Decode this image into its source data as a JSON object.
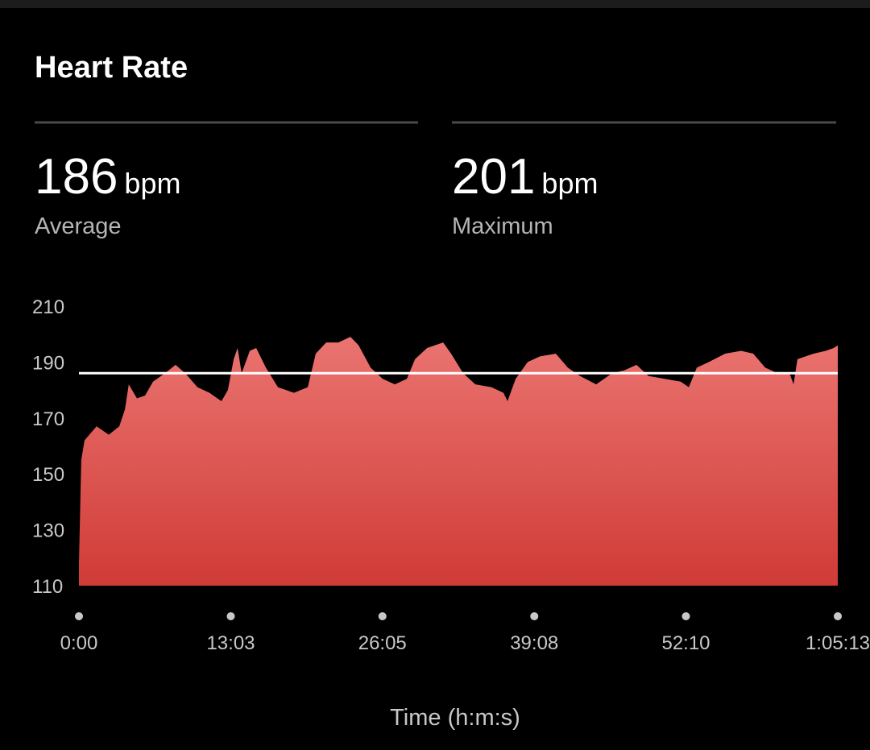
{
  "header": {
    "title": "Heart Rate"
  },
  "stats": [
    {
      "value": 186,
      "unit": "bpm",
      "label": "Average"
    },
    {
      "value": 201,
      "unit": "bpm",
      "label": "Maximum"
    }
  ],
  "chart_data": {
    "type": "area",
    "x_label": "Time (h:m:s)",
    "x": [
      0,
      12,
      29,
      91,
      154,
      208,
      237,
      257,
      299,
      341,
      382,
      444,
      498,
      548,
      611,
      673,
      735,
      768,
      798,
      818,
      839,
      881,
      914,
      964,
      1026,
      1109,
      1180,
      1221,
      1275,
      1338,
      1400,
      1442,
      1504,
      1566,
      1629,
      1691,
      1733,
      1795,
      1878,
      1919,
      1981,
      2044,
      2127,
      2189,
      2210,
      2252,
      2314,
      2376,
      2459,
      2521,
      2584,
      2667,
      2750,
      2812,
      2875,
      2937,
      3020,
      3103,
      3145,
      3186,
      3248,
      3332,
      3415,
      3477,
      3539,
      3602,
      3664,
      3685,
      3705,
      3788,
      3851,
      3892,
      3913
    ],
    "values": [
      118,
      155,
      162,
      167,
      164,
      167,
      173,
      182,
      177,
      178,
      183,
      186,
      189,
      186,
      181,
      179,
      176,
      180,
      191,
      195,
      186,
      194,
      195,
      188,
      181,
      179,
      181,
      193,
      197,
      197,
      199,
      196,
      188,
      184,
      182,
      184,
      191,
      195,
      197,
      193,
      186,
      182,
      181,
      179,
      176,
      184,
      190,
      192,
      193,
      188,
      185,
      182,
      186,
      187,
      189,
      185,
      184,
      183,
      181,
      188,
      190,
      193,
      194,
      193,
      188,
      186,
      186,
      182,
      191,
      193,
      194,
      195,
      196
    ],
    "gradient": [
      "#ea7471",
      "#d03b36"
    ],
    "xlim": [
      0,
      3913
    ],
    "xticks": [
      {
        "value": 0,
        "label": "0:00"
      },
      {
        "value": 783,
        "label": "13:03"
      },
      {
        "value": 1565,
        "label": "26:05"
      },
      {
        "value": 2348,
        "label": "39:08"
      },
      {
        "value": 3130,
        "label": "52:10"
      },
      {
        "value": 3913,
        "label": "1:05:13"
      }
    ],
    "ylim": [
      110,
      210
    ],
    "yticks": [
      110,
      130,
      150,
      170,
      190,
      210
    ],
    "grid": false
  }
}
